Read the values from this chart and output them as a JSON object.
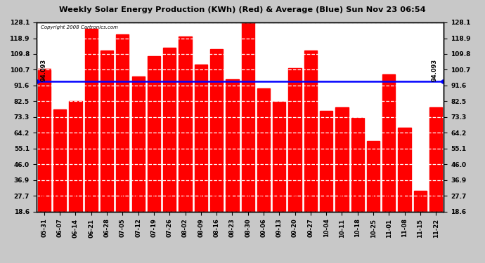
{
  "title": "Weekly Solar Energy Production (KWh) (Red) & Average (Blue) Sun Nov 23 06:54",
  "copyright": "Copyright 2008 Cartronics.com",
  "categories": [
    "05-31",
    "06-07",
    "06-14",
    "06-21",
    "06-28",
    "07-05",
    "07-12",
    "07-19",
    "07-26",
    "08-02",
    "08-09",
    "08-16",
    "08-23",
    "08-30",
    "09-06",
    "09-13",
    "09-20",
    "09-27",
    "10-04",
    "10-11",
    "10-18",
    "10-25",
    "11-01",
    "11-08",
    "11-15",
    "11-22"
  ],
  "values": [
    101.183,
    77.762,
    82.818,
    124.457,
    111.823,
    121.22,
    97.016,
    108.638,
    113.365,
    119.982,
    103.644,
    112.712,
    95.156,
    128.064,
    89.729,
    82.323,
    101.743,
    111.89,
    76.94,
    78.94,
    72.76,
    59.625,
    97.937,
    67.087,
    30.78,
    78.824
  ],
  "average": 94.093,
  "bar_color": "#ff0000",
  "avg_line_color": "#0000ff",
  "background_color": "#c8c8c8",
  "plot_bg_color": "#ffffff",
  "title_color": "#000000",
  "yticks": [
    18.6,
    27.7,
    36.9,
    46.0,
    55.1,
    64.2,
    73.3,
    82.5,
    91.6,
    100.7,
    109.8,
    118.9,
    128.1
  ],
  "ymin": 18.6,
  "ymax": 128.1,
  "grid_color": "#cccccc",
  "value_label_color": "#ff0000",
  "avg_label": "94.093"
}
